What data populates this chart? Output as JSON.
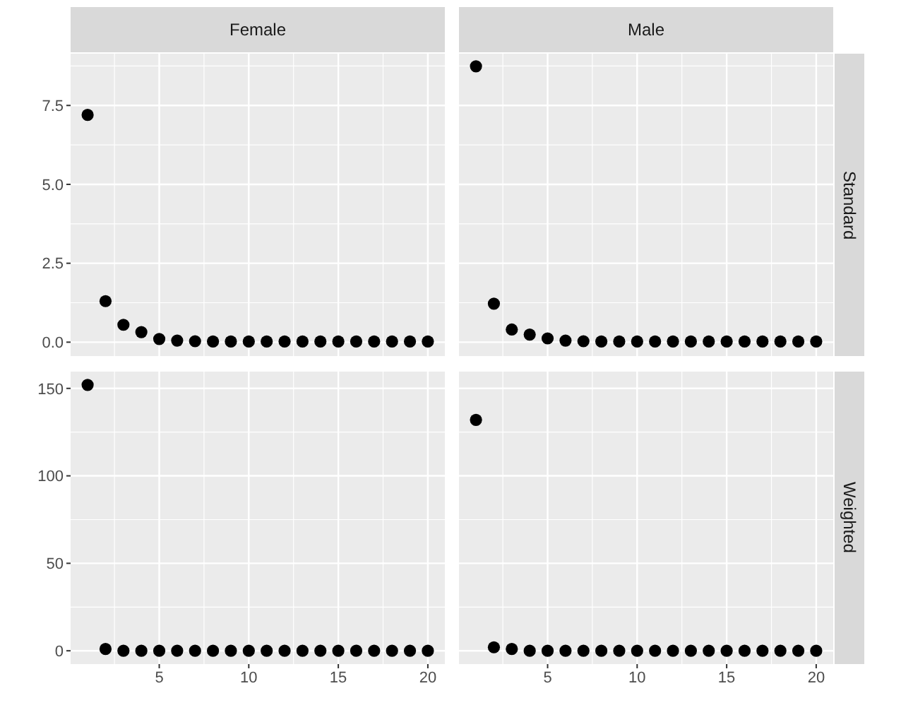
{
  "chart_data": [
    {
      "type": "scatter",
      "title": "Female",
      "x": [
        1,
        2,
        3,
        4,
        5,
        6,
        7,
        8,
        9,
        10,
        11,
        12,
        13,
        14,
        15,
        16,
        17,
        18,
        19,
        20
      ],
      "values": [
        7.2,
        1.3,
        0.55,
        0.32,
        0.1,
        0.05,
        0.03,
        0.02,
        0.02,
        0.02,
        0.02,
        0.02,
        0.02,
        0.02,
        0.02,
        0.02,
        0.02,
        0.02,
        0.02,
        0.02
      ],
      "color": "#000000",
      "xlim": [
        0.05,
        20.95
      ],
      "xticks": [
        5,
        10,
        15,
        20
      ],
      "ylim": [
        -0.44,
        9.14
      ],
      "yticks": [
        {
          "value": 0,
          "label": "0.0"
        },
        2.5,
        {
          "value": 5,
          "label": "5.0"
        },
        7.5
      ],
      "grid": true,
      "marker": "circle",
      "tick_labels": "y"
    },
    {
      "type": "scatter",
      "title": "Male",
      "annotations": [
        "Standard"
      ],
      "x": [
        1,
        2,
        3,
        4,
        5,
        6,
        7,
        8,
        9,
        10,
        11,
        12,
        13,
        14,
        15,
        16,
        17,
        18,
        19,
        20
      ],
      "values": [
        8.74,
        1.22,
        0.4,
        0.24,
        0.12,
        0.05,
        0.03,
        0.02,
        0.02,
        0.02,
        0.02,
        0.02,
        0.02,
        0.02,
        0.02,
        0.02,
        0.02,
        0.02,
        0.02,
        0.02
      ],
      "color": "#000000",
      "xlim": [
        0.05,
        20.95
      ],
      "xticks": [
        5,
        10,
        15,
        20
      ],
      "ylim": [
        -0.44,
        9.14
      ],
      "yticks": [
        0,
        2.5,
        5,
        7.5
      ],
      "grid": true,
      "marker": "circle",
      "tick_labels": false
    },
    {
      "type": "scatter",
      "x": [
        1,
        2,
        3,
        4,
        5,
        6,
        7,
        8,
        9,
        10,
        11,
        12,
        13,
        14,
        15,
        16,
        17,
        18,
        19,
        20
      ],
      "values": [
        152,
        1,
        0,
        0,
        0,
        0,
        0,
        0,
        0,
        0,
        0,
        0,
        0,
        0,
        0,
        0,
        0,
        0,
        0,
        0
      ],
      "color": "#000000",
      "xlim": [
        0.05,
        20.95
      ],
      "xticks": [
        5,
        10,
        15,
        20
      ],
      "ylim": [
        -7.6,
        159.6
      ],
      "yticks": [
        0,
        50,
        100,
        150
      ],
      "grid": true,
      "marker": "circle"
    },
    {
      "type": "scatter",
      "annotations": [
        "Weighted"
      ],
      "x": [
        1,
        2,
        3,
        4,
        5,
        6,
        7,
        8,
        9,
        10,
        11,
        12,
        13,
        14,
        15,
        16,
        17,
        18,
        19,
        20
      ],
      "values": [
        132,
        2,
        1,
        0,
        0,
        0,
        0,
        0,
        0,
        0,
        0,
        0,
        0,
        0,
        0,
        0,
        0,
        0,
        0,
        0
      ],
      "color": "#000000",
      "xlim": [
        0.05,
        20.95
      ],
      "xticks": [
        5,
        10,
        15,
        20
      ],
      "ylim": [
        -7.6,
        159.6
      ],
      "yticks": [
        0,
        50,
        100,
        150
      ],
      "grid": true,
      "marker": "circle",
      "tick_labels": "x"
    }
  ]
}
